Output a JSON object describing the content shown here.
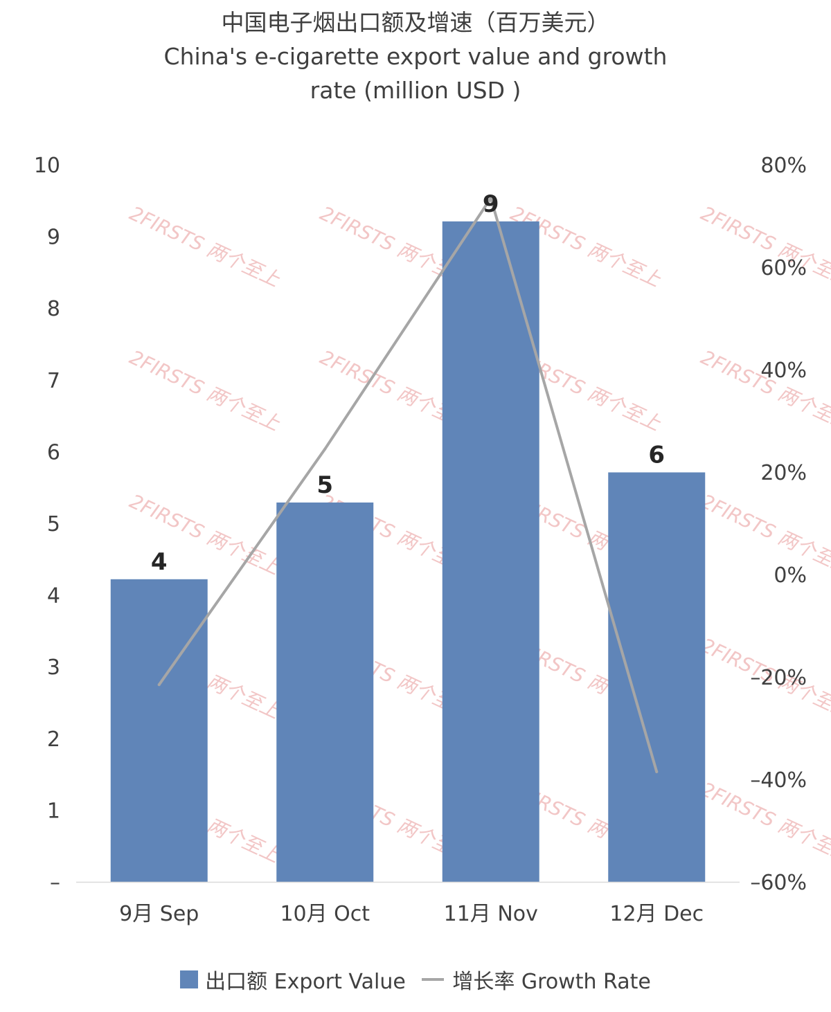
{
  "chart_data": {
    "type": "bar",
    "title": "中国电子烟出口额及增速（百万美元）",
    "subtitle_lines": [
      "China's e-cigarette export value and growth",
      "rate (million USD )"
    ],
    "categories": [
      "9月 Sep",
      "10月 Oct",
      "11月 Nov",
      "12月 Dec"
    ],
    "series": [
      {
        "name": "出口额 Export Value",
        "type": "bar",
        "axis": "left",
        "color": "#6085b8",
        "values": [
          4.22,
          5.29,
          9.21,
          5.71
        ],
        "data_labels": [
          "4",
          "5",
          "9",
          "6"
        ]
      },
      {
        "name": "增长率 Growth Rate",
        "type": "line",
        "axis": "right",
        "color": "#a6a6a6",
        "values": [
          -21.5,
          24.5,
          73.5,
          -38.5
        ]
      }
    ],
    "left_axis": {
      "ylim": [
        0,
        10
      ],
      "ticks": [
        0,
        1,
        2,
        3,
        4,
        5,
        6,
        7,
        8,
        9,
        10
      ],
      "tick_labels": [
        "–",
        "1",
        "2",
        "3",
        "4",
        "5",
        "6",
        "7",
        "8",
        "9",
        "10"
      ]
    },
    "right_axis": {
      "ylim": [
        -60,
        80
      ],
      "ticks": [
        -60,
        -40,
        -20,
        0,
        20,
        40,
        60,
        80
      ],
      "tick_labels": [
        "–60%",
        "–40%",
        "–20%",
        "0%",
        "20%",
        "40%",
        "60%",
        "80%"
      ]
    },
    "grid": false,
    "legend": {
      "position": "bottom",
      "entries": [
        "出口额 Export Value",
        "增长率 Growth Rate"
      ]
    }
  },
  "watermark_text": "2FIRSTS 两个至上"
}
